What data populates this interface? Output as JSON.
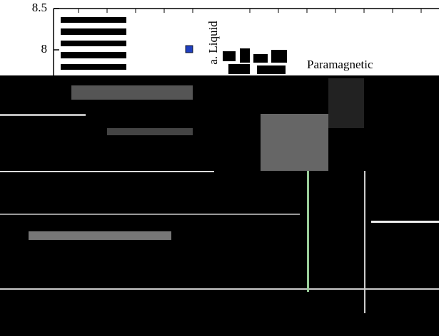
{
  "chart_data": {
    "type": "scatter",
    "ylim": [
      7.6,
      8.5
    ],
    "yticks": [
      8,
      8.5
    ],
    "labels": [
      "a. Liquid",
      "Paramagnetic"
    ],
    "color": "#1f3fbf"
  }
}
